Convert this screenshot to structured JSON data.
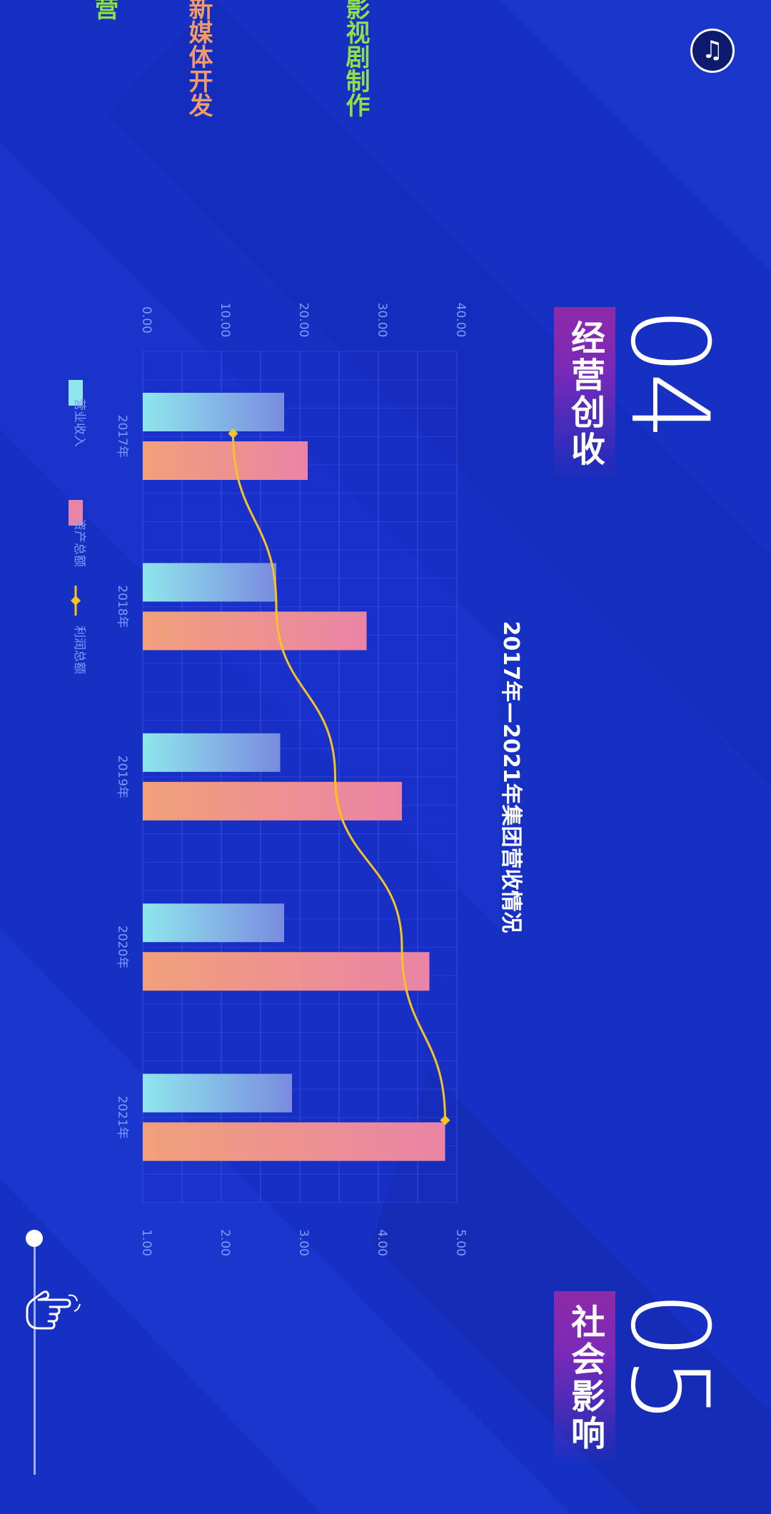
{
  "left_categories": [
    {
      "text": "影视剧制作",
      "color": "#8ee04a"
    },
    {
      "text": "新媒体开发",
      "color": "#f29a6a"
    },
    {
      "text": "营",
      "color": "#8ee04a"
    }
  ],
  "section_current": {
    "number": "04",
    "label": "经营创收"
  },
  "section_next": {
    "number": "05",
    "label": "社会影响"
  },
  "icons": {
    "music": "music-note-icon",
    "hand": "pointer-hand-icon"
  },
  "colors": {
    "background": "#1730c4",
    "bar_revenue_start": "#8fe6ec",
    "bar_revenue_end": "#7a8be0",
    "bar_assets_start": "#f1a07a",
    "bar_assets_end": "#ea84a6",
    "profit_line": "#f7c320",
    "tick_label": "#7f9cff"
  },
  "chart_data": {
    "type": "bar",
    "title": "2017年—2021年集团营收情况",
    "categories": [
      "2017年",
      "2018年",
      "2019年",
      "2020年",
      "2021年"
    ],
    "series": [
      {
        "name": "营业收入",
        "axis": "left",
        "values": [
          18.0,
          17.0,
          17.5,
          18.0,
          19.0
        ]
      },
      {
        "name": "资产总额",
        "axis": "left",
        "values": [
          21.0,
          28.5,
          33.0,
          36.5,
          38.5
        ]
      },
      {
        "name": "利润总额",
        "axis": "right",
        "type": "line",
        "values": [
          2.15,
          2.7,
          3.45,
          4.3,
          4.85
        ]
      }
    ],
    "y_left": {
      "ticks": [
        "0.00",
        "10.00",
        "20.00",
        "30.00",
        "40.00"
      ],
      "range": [
        0,
        40
      ]
    },
    "y_right": {
      "ticks": [
        "1.00",
        "2.00",
        "3.00",
        "4.00",
        "5.00"
      ],
      "range": [
        1,
        5
      ]
    },
    "grid": true,
    "legend_position": "bottom"
  }
}
